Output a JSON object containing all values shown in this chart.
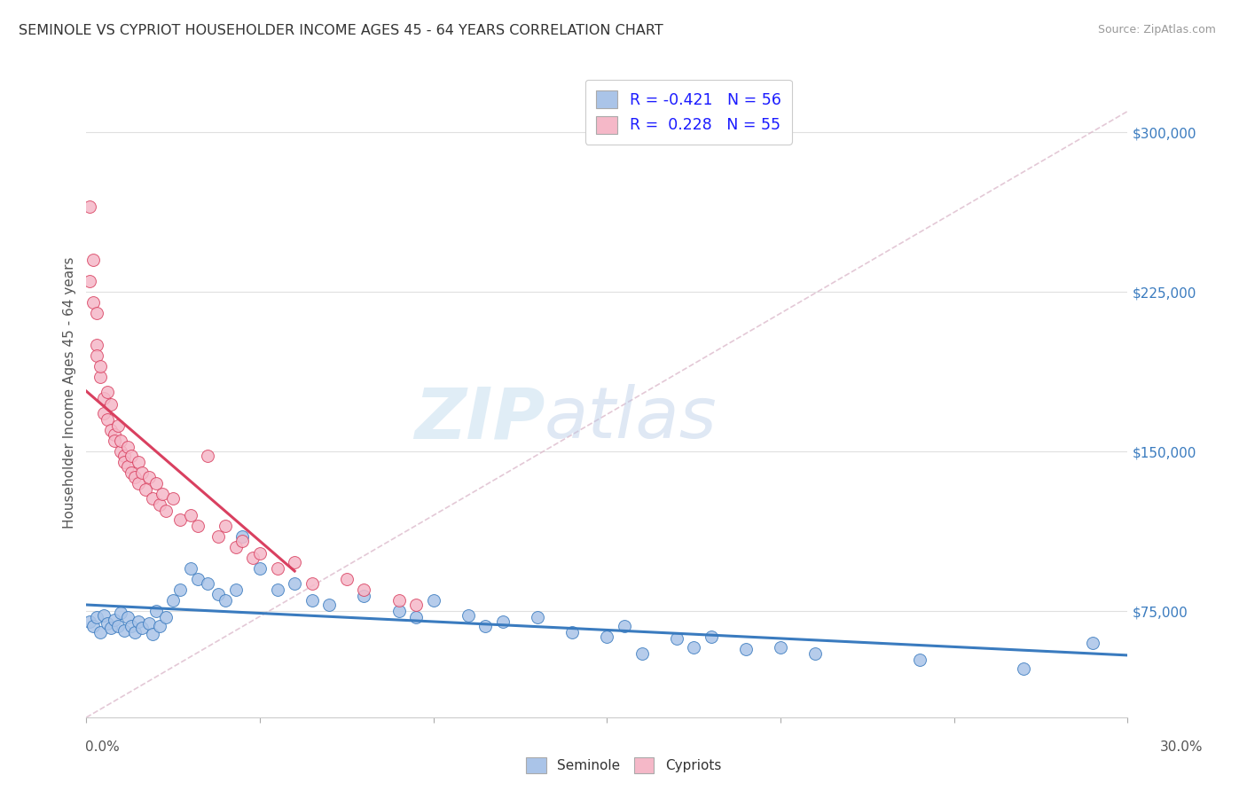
{
  "title": "SEMINOLE VS CYPRIOT HOUSEHOLDER INCOME AGES 45 - 64 YEARS CORRELATION CHART",
  "source": "Source: ZipAtlas.com",
  "ylabel": "Householder Income Ages 45 - 64 years",
  "watermark_zip": "ZIP",
  "watermark_atlas": "atlas",
  "seminole_color": "#aac4e8",
  "cypriot_color": "#f5b8c8",
  "seminole_line_color": "#3a7bbf",
  "cypriot_line_color": "#d94060",
  "background_color": "#ffffff",
  "ytick_labels": [
    "$75,000",
    "$150,000",
    "$225,000",
    "$300,000"
  ],
  "ytick_values": [
    75000,
    150000,
    225000,
    300000
  ],
  "xlim": [
    0.0,
    0.3
  ],
  "ylim": [
    25000,
    330000
  ],
  "ref_line_color": "#ddbbcc",
  "grid_color": "#e0e0e0",
  "seminole_x": [
    0.001,
    0.002,
    0.003,
    0.004,
    0.005,
    0.006,
    0.007,
    0.008,
    0.009,
    0.01,
    0.011,
    0.012,
    0.013,
    0.014,
    0.015,
    0.016,
    0.018,
    0.019,
    0.02,
    0.021,
    0.023,
    0.025,
    0.027,
    0.03,
    0.032,
    0.035,
    0.038,
    0.04,
    0.043,
    0.045,
    0.05,
    0.055,
    0.06,
    0.065,
    0.07,
    0.08,
    0.09,
    0.095,
    0.1,
    0.11,
    0.115,
    0.12,
    0.13,
    0.14,
    0.15,
    0.155,
    0.16,
    0.17,
    0.175,
    0.18,
    0.19,
    0.2,
    0.21,
    0.24,
    0.27,
    0.29
  ],
  "seminole_y": [
    70000,
    68000,
    72000,
    65000,
    73000,
    69000,
    67000,
    71000,
    68000,
    74000,
    66000,
    72000,
    68000,
    65000,
    70000,
    67000,
    69000,
    64000,
    75000,
    68000,
    72000,
    80000,
    85000,
    95000,
    90000,
    88000,
    83000,
    80000,
    85000,
    110000,
    95000,
    85000,
    88000,
    80000,
    78000,
    82000,
    75000,
    72000,
    80000,
    73000,
    68000,
    70000,
    72000,
    65000,
    63000,
    68000,
    55000,
    62000,
    58000,
    63000,
    57000,
    58000,
    55000,
    52000,
    48000,
    60000
  ],
  "cypriot_x": [
    0.001,
    0.001,
    0.002,
    0.002,
    0.003,
    0.003,
    0.003,
    0.004,
    0.004,
    0.005,
    0.005,
    0.006,
    0.006,
    0.007,
    0.007,
    0.008,
    0.008,
    0.009,
    0.01,
    0.01,
    0.011,
    0.011,
    0.012,
    0.012,
    0.013,
    0.013,
    0.014,
    0.015,
    0.015,
    0.016,
    0.017,
    0.018,
    0.019,
    0.02,
    0.021,
    0.022,
    0.023,
    0.025,
    0.027,
    0.03,
    0.032,
    0.035,
    0.038,
    0.04,
    0.043,
    0.045,
    0.048,
    0.05,
    0.055,
    0.06,
    0.065,
    0.075,
    0.08,
    0.09,
    0.095
  ],
  "cypriot_y": [
    265000,
    230000,
    240000,
    220000,
    215000,
    200000,
    195000,
    185000,
    190000,
    175000,
    168000,
    178000,
    165000,
    172000,
    160000,
    158000,
    155000,
    162000,
    150000,
    155000,
    148000,
    145000,
    152000,
    143000,
    148000,
    140000,
    138000,
    145000,
    135000,
    140000,
    132000,
    138000,
    128000,
    135000,
    125000,
    130000,
    122000,
    128000,
    118000,
    120000,
    115000,
    148000,
    110000,
    115000,
    105000,
    108000,
    100000,
    102000,
    95000,
    98000,
    88000,
    90000,
    85000,
    80000,
    78000
  ]
}
